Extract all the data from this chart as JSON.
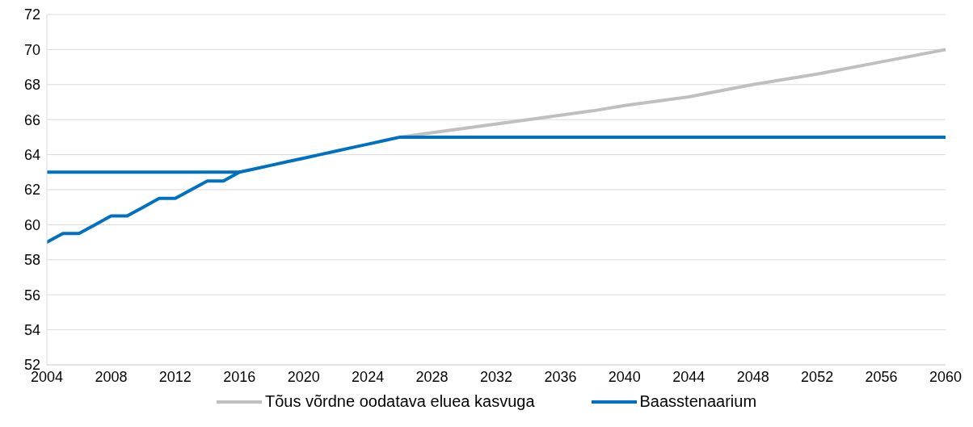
{
  "chart_data": {
    "type": "line",
    "xlim": [
      2004,
      2060
    ],
    "xticks": [
      2004,
      2008,
      2012,
      2016,
      2020,
      2024,
      2028,
      2032,
      2036,
      2040,
      2044,
      2048,
      2052,
      2056,
      2060
    ],
    "ylim": [
      52,
      72
    ],
    "yticks": [
      52,
      54,
      56,
      58,
      60,
      62,
      64,
      66,
      68,
      70,
      72
    ],
    "grid": "y",
    "legend": "bottom",
    "marker": "none",
    "line_style": "solid",
    "series": [
      {
        "name": "Tõus võrdne oodatava eluea kasvuga",
        "color": "#bfbfbf",
        "x": [
          2026,
          2030,
          2034,
          2038,
          2040,
          2044,
          2048,
          2052,
          2056,
          2060
        ],
        "values": [
          65,
          65.5,
          66,
          66.5,
          66.8,
          67.3,
          68,
          68.6,
          69.3,
          70
        ]
      },
      {
        "name": "Baasstenaarium",
        "color": "#0070c0",
        "x": [
          2004,
          2005,
          2006,
          2007,
          2008,
          2009,
          2010,
          2011,
          2012,
          2013,
          2014,
          2015,
          2016,
          2017,
          2018,
          2019,
          2020,
          2021,
          2022,
          2023,
          2024,
          2025,
          2026,
          2060
        ],
        "values": [
          59,
          59.5,
          59.5,
          60,
          60.5,
          60.5,
          61,
          61.5,
          61.5,
          62,
          62.5,
          62.5,
          63,
          63.2,
          63.4,
          63.6,
          63.8,
          64,
          64.2,
          64.4,
          64.6,
          64.8,
          65,
          65
        ]
      },
      {
        "color": "#0070c0",
        "x": [
          2004,
          2016
        ],
        "values": [
          63,
          63
        ]
      }
    ]
  }
}
